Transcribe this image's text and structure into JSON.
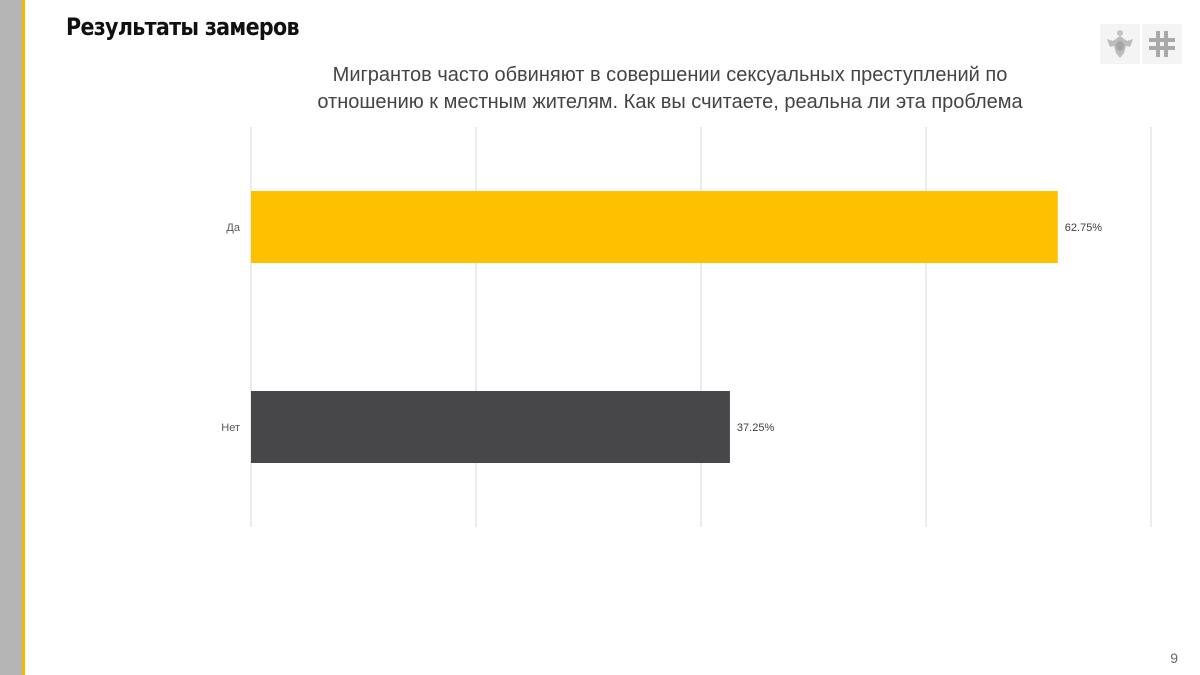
{
  "slide": {
    "title": "Результаты замеров",
    "page_number": "9",
    "accent_color": "#f2b800",
    "sidebar_color": "#b5b5b5",
    "logos": [
      "eagle-emblem-icon",
      "cross-grid-logo-icon"
    ]
  },
  "chart_data": {
    "type": "bar",
    "orientation": "horizontal",
    "title_lines": [
      "Мигрантов часто обвиняют в совершении сексуальных преступлений по",
      "отношению к местным жителям. Как вы считаете, реальна ли эта проблема"
    ],
    "categories": [
      "Да",
      "Нет"
    ],
    "values": [
      62.75,
      37.25
    ],
    "data_labels": [
      "62.75%",
      "37.25%"
    ],
    "colors": [
      "#ffc000",
      "#474749"
    ],
    "xlim": [
      0,
      70
    ],
    "gridlines": [
      0,
      17.5,
      35,
      52.5,
      70
    ],
    "grid": true,
    "xlabel": "",
    "ylabel": ""
  }
}
